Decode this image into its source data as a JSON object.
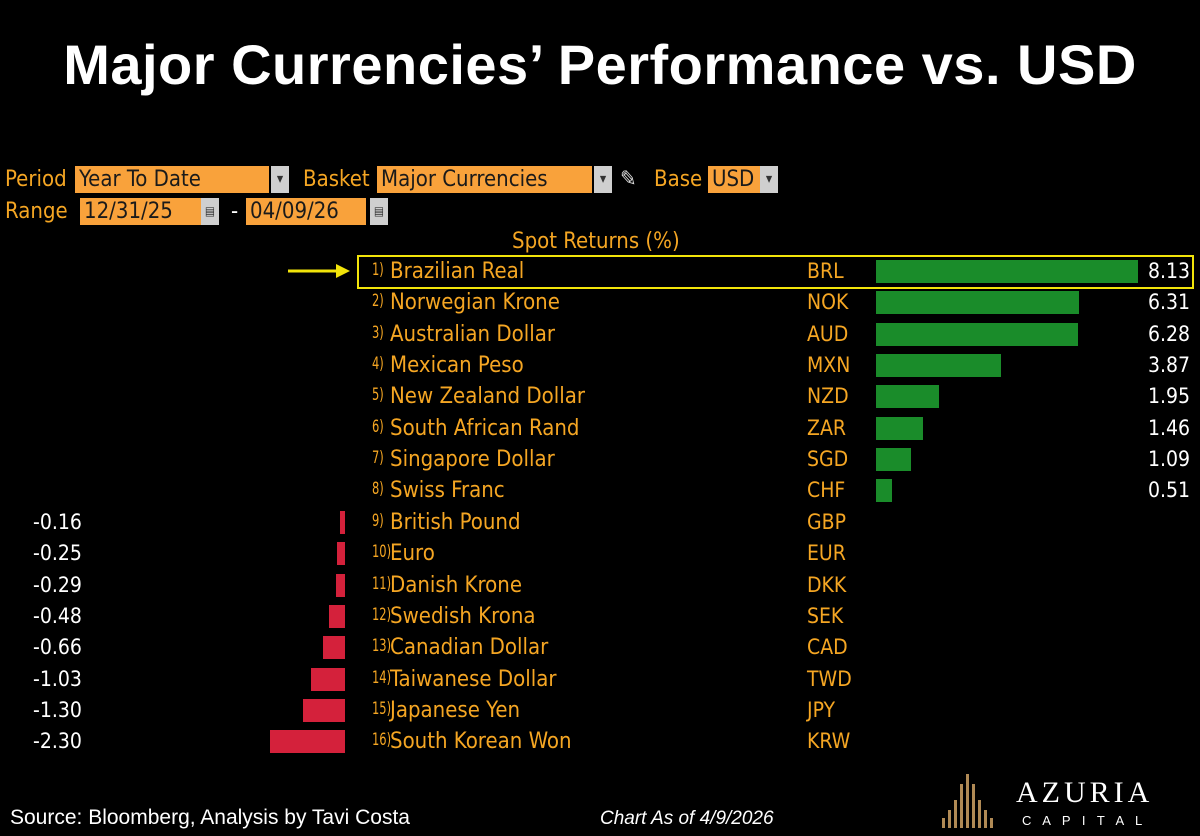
{
  "title": "Major Currencies’ Performance vs. USD",
  "controls": {
    "period_label": "Period",
    "period_value": "Year To Date",
    "basket_label": "Basket",
    "basket_value": "Major Currencies",
    "base_label": "Base",
    "base_value": "USD",
    "range_label": "Range",
    "range_start": "12/31/25",
    "range_sep": "-",
    "range_end": "04/09/26"
  },
  "chart_data": {
    "type": "bar",
    "title": "Spot Returns (%)",
    "categories": [
      "Brazilian Real",
      "Norwegian Krone",
      "Australian Dollar",
      "Mexican Peso",
      "New Zealand Dollar",
      "South African Rand",
      "Singapore Dollar",
      "Swiss Franc",
      "British Pound",
      "Euro",
      "Danish Krone",
      "Swedish Krona",
      "Canadian Dollar",
      "Taiwanese Dollar",
      "Japanese Yen",
      "South Korean Won"
    ],
    "ranks": [
      "1)",
      "2)",
      "3)",
      "4)",
      "5)",
      "6)",
      "7)",
      "8)",
      "9)",
      "10)",
      "11)",
      "12)",
      "13)",
      "14)",
      "15)",
      "16)"
    ],
    "codes": [
      "BRL",
      "NOK",
      "AUD",
      "MXN",
      "NZD",
      "ZAR",
      "SGD",
      "CHF",
      "GBP",
      "EUR",
      "DKK",
      "SEK",
      "CAD",
      "TWD",
      "JPY",
      "KRW"
    ],
    "values": [
      8.13,
      6.31,
      6.28,
      3.87,
      1.95,
      1.46,
      1.09,
      0.51,
      -0.16,
      -0.25,
      -0.29,
      -0.48,
      -0.66,
      -1.03,
      -1.3,
      -2.3
    ],
    "labels": [
      "8.13",
      "6.31",
      "6.28",
      "3.87",
      "1.95",
      "1.46",
      "1.09",
      "0.51",
      "-0.16",
      "-0.25",
      "-0.29",
      "-0.48",
      "-0.66",
      "-1.03",
      "-1.30",
      "-2.30"
    ],
    "highlighted": "Brazilian Real",
    "colors": {
      "positive": "#1a8c2a",
      "negative": "#d4213b",
      "highlight": "#f2e40a"
    }
  },
  "footer": {
    "source": "Source: Bloomberg, Analysis by Tavi Costa",
    "date": "Chart As of 4/9/2026",
    "brand": "AZURIA",
    "brand_sub": "C A P I T A L"
  }
}
